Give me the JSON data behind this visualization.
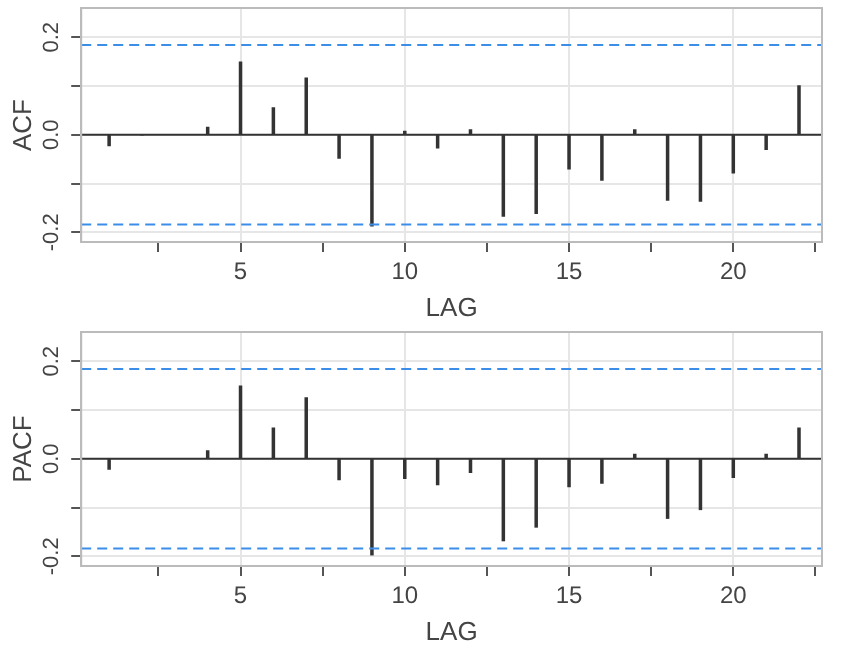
{
  "chart_data": [
    {
      "type": "bar",
      "xlabel": "LAG",
      "ylabel": "ACF",
      "x": [
        1,
        2,
        3,
        4,
        5,
        6,
        7,
        8,
        9,
        10,
        11,
        12,
        13,
        14,
        15,
        16,
        17,
        18,
        19,
        20,
        21,
        22
      ],
      "series": [
        {
          "color": "#333333",
          "values": [
            -0.022,
            0,
            null,
            0.015,
            0.149,
            0.055,
            0.116,
            -0.048,
            -0.187,
            0.007,
            -0.027,
            0.01,
            -0.167,
            -0.161,
            -0.07,
            -0.093,
            0.01,
            -0.134,
            -0.136,
            -0.078,
            -0.03,
            0.1
          ]
        }
      ],
      "xlim": [
        0.15,
        22.7
      ],
      "xticks": [
        {
          "value": 2.5,
          "label": null
        },
        5,
        {
          "value": 7.5,
          "label": null
        },
        10,
        {
          "value": 12.5,
          "label": null
        },
        15,
        {
          "value": 17.5,
          "label": null
        },
        20,
        {
          "value": 22.5,
          "label": null
        }
      ],
      "ylim": [
        -0.22,
        0.26
      ],
      "yticks": [
        {
          "value": -0.2,
          "label": "-0.2"
        },
        {
          "value": -0.1,
          "label": null
        },
        {
          "value": 0,
          "label": "0.0"
        },
        {
          "value": 0.1,
          "label": null
        },
        {
          "value": 0.2,
          "label": "0.2"
        }
      ],
      "grid": true,
      "legend": false,
      "ref_lines": [
        {
          "axis": "y",
          "value": 0.184,
          "color": "#3b8ee8",
          "line_style": "dashed"
        },
        {
          "axis": "y",
          "value": -0.184,
          "color": "#3b8ee8",
          "line_style": "dashed"
        },
        {
          "axis": "y",
          "value": 0,
          "color": "#333333",
          "line_style": "solid"
        }
      ]
    },
    {
      "type": "bar",
      "xlabel": "LAG",
      "ylabel": "PACF",
      "x": [
        1,
        2,
        3,
        4,
        5,
        6,
        7,
        8,
        9,
        10,
        11,
        12,
        13,
        14,
        15,
        16,
        17,
        18,
        19,
        20,
        21,
        22
      ],
      "series": [
        {
          "color": "#333333",
          "values": [
            -0.021,
            null,
            null,
            0.016,
            0.149,
            0.063,
            0.125,
            -0.043,
            -0.197,
            -0.04,
            -0.053,
            -0.028,
            -0.168,
            -0.14,
            -0.057,
            -0.05,
            0.009,
            -0.122,
            -0.104,
            -0.038,
            0.009,
            0.063
          ]
        }
      ],
      "xlim": [
        0.15,
        22.7
      ],
      "xticks": [
        {
          "value": 2.5,
          "label": null
        },
        5,
        {
          "value": 7.5,
          "label": null
        },
        10,
        {
          "value": 12.5,
          "label": null
        },
        15,
        {
          "value": 17.5,
          "label": null
        },
        20,
        {
          "value": 22.5,
          "label": null
        }
      ],
      "ylim": [
        -0.22,
        0.26
      ],
      "yticks": [
        -0.2,
        {
          "value": -0.1,
          "label": null
        },
        {
          "value": 0,
          "label": "0.0"
        },
        {
          "value": 0.1,
          "label": null
        },
        0.2
      ],
      "grid": true,
      "legend": false,
      "ref_lines": [
        {
          "axis": "y",
          "value": 0.184,
          "color": "#3b8ee8",
          "line_style": "dashed"
        },
        {
          "axis": "y",
          "value": -0.184,
          "color": "#3b8ee8",
          "line_style": "dashed"
        },
        {
          "axis": "y",
          "value": 0,
          "color": "#333333",
          "line_style": "solid"
        }
      ]
    }
  ]
}
